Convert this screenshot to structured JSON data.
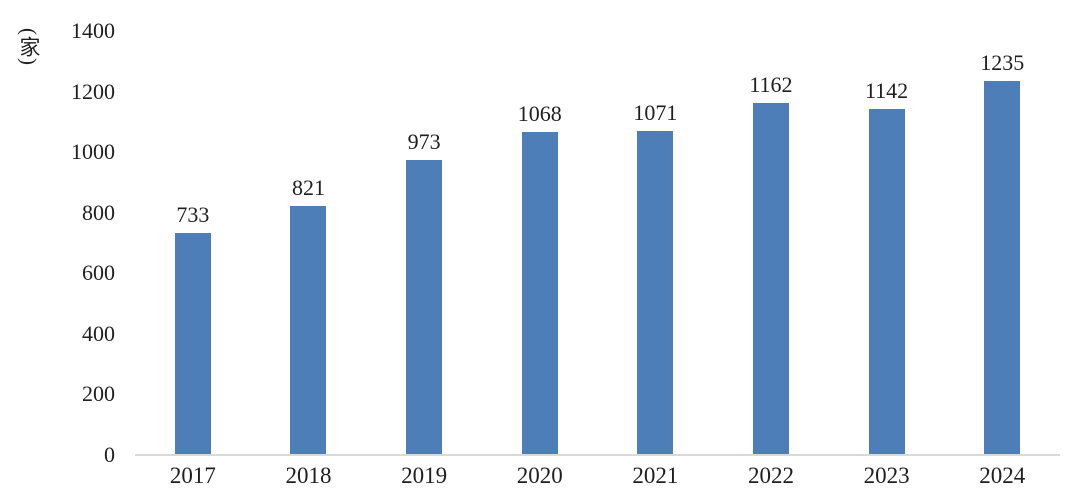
{
  "chart_data": {
    "type": "bar",
    "title": "",
    "xlabel": "",
    "ylabel": "(家)",
    "categories": [
      "2017",
      "2018",
      "2019",
      "2020",
      "2021",
      "2022",
      "2023",
      "2024"
    ],
    "values": [
      733,
      821,
      973,
      1068,
      1071,
      1162,
      1142,
      1235
    ],
    "ylim": [
      0,
      1400
    ],
    "yticks": [
      0,
      200,
      400,
      600,
      800,
      1000,
      1200,
      1400
    ],
    "grid": false,
    "legend": "none",
    "data_labels": true,
    "bar_color": "#4d7eb8",
    "axis_line_color": "#d9d9d9",
    "text_color": "#1f1f1f"
  }
}
